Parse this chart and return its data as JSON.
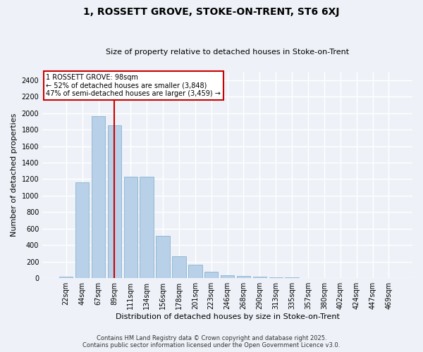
{
  "title": "1, ROSSETT GROVE, STOKE-ON-TRENT, ST6 6XJ",
  "subtitle": "Size of property relative to detached houses in Stoke-on-Trent",
  "xlabel": "Distribution of detached houses by size in Stoke-on-Trent",
  "ylabel": "Number of detached properties",
  "bar_labels": [
    "22sqm",
    "44sqm",
    "67sqm",
    "89sqm",
    "111sqm",
    "134sqm",
    "156sqm",
    "178sqm",
    "201sqm",
    "223sqm",
    "246sqm",
    "268sqm",
    "290sqm",
    "313sqm",
    "335sqm",
    "357sqm",
    "380sqm",
    "402sqm",
    "424sqm",
    "447sqm",
    "469sqm"
  ],
  "bar_values": [
    22,
    1160,
    1960,
    1850,
    1230,
    1230,
    510,
    270,
    160,
    80,
    40,
    30,
    20,
    10,
    8,
    5,
    4,
    3,
    2,
    2,
    2
  ],
  "bar_color": "#b8d0e8",
  "bar_edge_color": "#7aaac8",
  "vline_x": 3,
  "vline_color": "#cc0000",
  "annotation_title": "1 ROSSETT GROVE: 98sqm",
  "annotation_line1": "← 52% of detached houses are smaller (3,848)",
  "annotation_line2": "47% of semi-detached houses are larger (3,459) →",
  "annotation_box_color": "white",
  "annotation_box_edge_color": "#cc0000",
  "ylim_max": 2500,
  "yticks": [
    0,
    200,
    400,
    600,
    800,
    1000,
    1200,
    1400,
    1600,
    1800,
    2000,
    2200,
    2400
  ],
  "footer_line1": "Contains HM Land Registry data © Crown copyright and database right 2025.",
  "footer_line2": "Contains public sector information licensed under the Open Government Licence v3.0.",
  "bg_color": "#eef2f8",
  "grid_color": "white",
  "title_fontsize": 10,
  "subtitle_fontsize": 8,
  "ylabel_fontsize": 8,
  "xlabel_fontsize": 8,
  "tick_fontsize": 7,
  "footer_fontsize": 6,
  "ann_fontsize": 7
}
